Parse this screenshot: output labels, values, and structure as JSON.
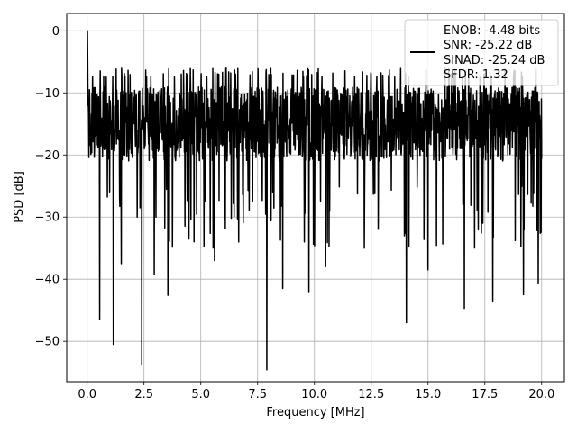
{
  "chart_data": {
    "type": "line",
    "xlabel": "Frequency [MHz]",
    "ylabel": "PSD [dB]",
    "xlim": [
      -0.9,
      21.0
    ],
    "ylim": [
      -56.5,
      2.8
    ],
    "xticks": [
      0.0,
      2.5,
      5.0,
      7.5,
      10.0,
      12.5,
      15.0,
      17.5,
      20.0
    ],
    "xtick_labels": [
      "0.0",
      "2.5",
      "5.0",
      "7.5",
      "10.0",
      "12.5",
      "15.0",
      "17.5",
      "20.0"
    ],
    "yticks": [
      0,
      -10,
      -20,
      -30,
      -40,
      -50
    ],
    "ytick_labels": [
      "0",
      "−10",
      "−20",
      "−30",
      "−40",
      "−50"
    ],
    "grid": true,
    "legend_position": "top-right",
    "legend_lines": [
      "ENOB: -4.48 bits",
      "SNR: -25.22 dB",
      "SINAD: -25.24 dB",
      "SFDR: 1.32"
    ],
    "series": [
      {
        "color": "#000000",
        "x_start": 0.0,
        "x_end": 20.0,
        "num_points": 1600,
        "peak_x": 0.0,
        "peak_value": 0,
        "noise_mean": -15,
        "noise_spread": 6,
        "noise_max": -5,
        "deep_dips": [
          {
            "x": 0.55,
            "value": -46.5
          },
          {
            "x": 1.15,
            "value": -50.5
          },
          {
            "x": 1.5,
            "value": -37.5
          },
          {
            "x": 2.4,
            "value": -53.7
          },
          {
            "x": 2.95,
            "value": -39.3
          },
          {
            "x": 3.55,
            "value": -42.6
          },
          {
            "x": 4.7,
            "value": -34.0
          },
          {
            "x": 5.6,
            "value": -37.0
          },
          {
            "x": 7.9,
            "value": -54.6
          },
          {
            "x": 8.6,
            "value": -41.5
          },
          {
            "x": 9.75,
            "value": -42.0
          },
          {
            "x": 10.5,
            "value": -38.0
          },
          {
            "x": 12.2,
            "value": -35.0
          },
          {
            "x": 14.05,
            "value": -47.0
          },
          {
            "x": 15.0,
            "value": -38.5
          },
          {
            "x": 16.6,
            "value": -44.7
          },
          {
            "x": 17.85,
            "value": -43.5
          },
          {
            "x": 19.2,
            "value": -42.5
          },
          {
            "x": 19.85,
            "value": -40.6
          }
        ]
      }
    ]
  }
}
